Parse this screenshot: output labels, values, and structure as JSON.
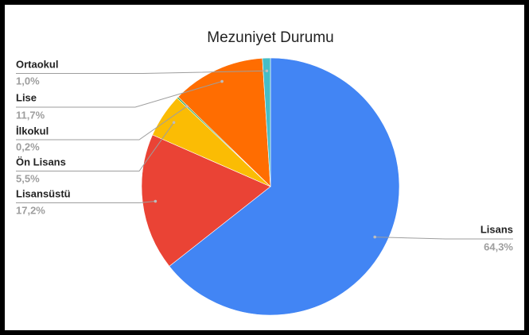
{
  "chart_data": {
    "type": "pie",
    "title": "Mezuniyet Durumu",
    "categories": [
      "Lisans",
      "Lisansüstü",
      "Ön Lisans",
      "İlkokul",
      "Lise",
      "Ortaokul"
    ],
    "values": [
      64.3,
      17.2,
      5.5,
      0.2,
      11.7,
      1.0
    ],
    "value_labels": [
      "64,3%",
      "17,2%",
      "5,5%",
      "0,2%",
      "11,7%",
      "1,0%"
    ],
    "colors": [
      "#4285f4",
      "#ea4335",
      "#fbbc04",
      "#34a853",
      "#ff6d01",
      "#46bdc6"
    ]
  }
}
